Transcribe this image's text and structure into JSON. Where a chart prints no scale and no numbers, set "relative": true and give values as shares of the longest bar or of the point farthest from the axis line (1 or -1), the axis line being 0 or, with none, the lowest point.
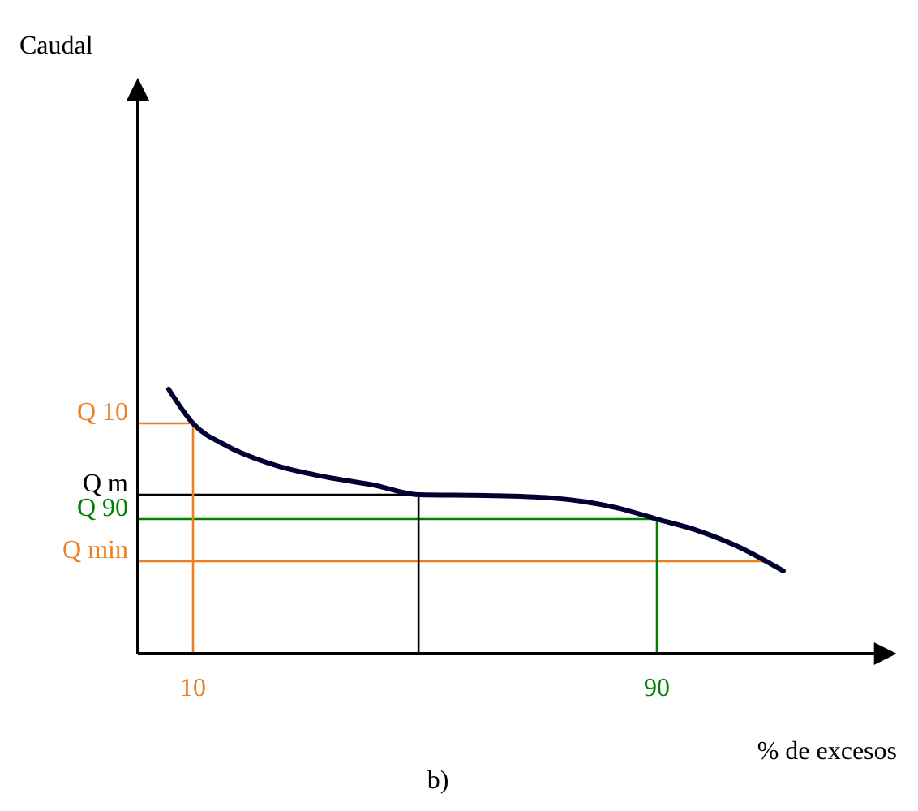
{
  "chart_data": {
    "type": "line",
    "relative": true,
    "xlabel": "% de excesos",
    "annotations": [
      "Caudal",
      "b)"
    ],
    "xlim": [
      0,
      128
    ],
    "xticks": [
      10,
      90
    ],
    "series": [
      {
        "color": "#000033",
        "x": [
          5.8,
          10,
          15.9,
          24.3,
          32.7,
          41.1,
          48.9,
          60.6,
          71.8,
          83,
          90,
          97,
          104,
          111.8
        ],
        "values": [
          1,
          0.871,
          0.785,
          0.712,
          0.669,
          0.638,
          0.601,
          0.598,
          0.589,
          0.552,
          0.509,
          0.466,
          0.405,
          0.313
        ]
      }
    ],
    "ref_lines": [
      {
        "axis": "y",
        "value": 0.871,
        "label": "Q 10",
        "color": "#f07d1e"
      },
      {
        "axis": "y",
        "value": 0.601,
        "label": "Q m",
        "color": "#000000"
      },
      {
        "axis": "y",
        "value": 0.509,
        "label": "Q 90",
        "color": "#008000"
      },
      {
        "axis": "y",
        "value": 0.35,
        "label": "Q min",
        "color": "#f07d1e"
      },
      {
        "axis": "x",
        "value": 10,
        "color": "#f07d1e"
      },
      {
        "axis": "x",
        "value": 48.9,
        "color": "#000000"
      },
      {
        "axis": "x",
        "value": 90,
        "color": "#008000"
      }
    ]
  }
}
